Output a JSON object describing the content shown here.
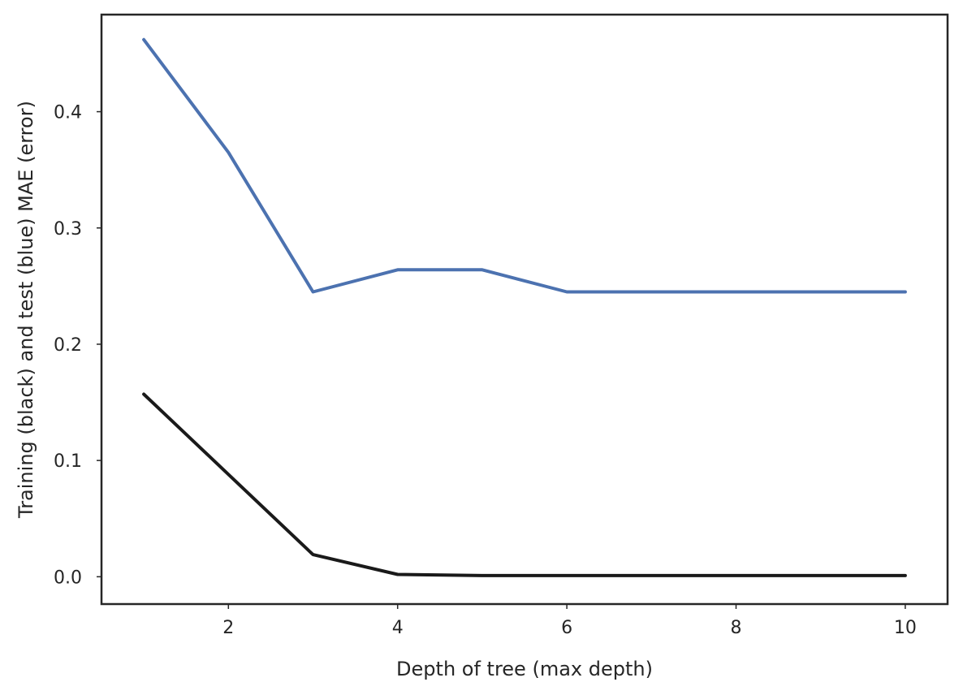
{
  "chart_data": {
    "type": "line",
    "title": "",
    "xlabel": "Depth of tree (max depth)",
    "ylabel": "Training (black) and test (blue) MAE (error)",
    "xlim": [
      0.5,
      10.5
    ],
    "ylim": [
      -0.0235,
      0.4835
    ],
    "xticks": [
      2,
      4,
      6,
      8,
      10
    ],
    "xtick_labels": [
      "2",
      "4",
      "6",
      "8",
      "10"
    ],
    "yticks": [
      0.0,
      0.1,
      0.2,
      0.3,
      0.4
    ],
    "ytick_labels": [
      "0.0",
      "0.1",
      "0.2",
      "0.3",
      "0.4"
    ],
    "grid": false,
    "legend": "none",
    "x": [
      1,
      2,
      3,
      4,
      5,
      6,
      7,
      8,
      9,
      10
    ],
    "series": [
      {
        "color": "#4c72b0",
        "values": [
          0.462,
          0.365,
          0.245,
          0.264,
          0.264,
          0.245,
          0.245,
          0.245,
          0.245,
          0.245
        ]
      },
      {
        "color": "#1a1a1a",
        "values": [
          0.157,
          0.088,
          0.019,
          0.002,
          0.001,
          0.001,
          0.001,
          0.001,
          0.001,
          0.001
        ]
      }
    ]
  }
}
